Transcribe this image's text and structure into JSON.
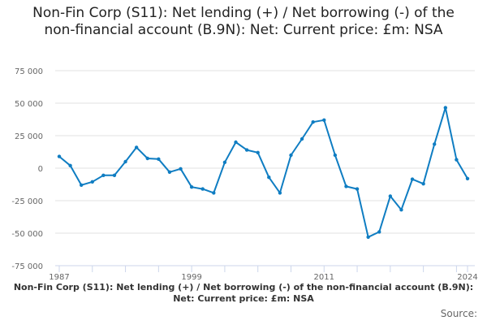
{
  "chart_data": {
    "type": "line",
    "title": "Non-Fin Corp (S11): Net lending (+) / Net borrowing (-) of the non-financial account (B.9N): Net: Current price: £m: NSA",
    "xlabel": "Non-Fin Corp (S11): Net lending (+) / Net borrowing (-) of the non-financial account (B.9N): Net: Current price: £m: NSA",
    "ylabel": "",
    "source_label": "Source:",
    "x": [
      1987,
      1988,
      1989,
      1990,
      1991,
      1992,
      1993,
      1994,
      1995,
      1996,
      1997,
      1998,
      1999,
      2000,
      2001,
      2002,
      2003,
      2004,
      2005,
      2006,
      2007,
      2008,
      2009,
      2010,
      2011,
      2012,
      2013,
      2014,
      2015,
      2016,
      2017,
      2018,
      2019,
      2020,
      2021,
      2022,
      2023,
      2024
    ],
    "values": [
      9000,
      2000,
      -13000,
      -10500,
      -5500,
      -5500,
      5000,
      16000,
      7500,
      7000,
      -3000,
      -500,
      -14500,
      -16000,
      -19000,
      4500,
      20000,
      14000,
      12000,
      -7000,
      -19000,
      10000,
      22500,
      35500,
      37000,
      10000,
      -14000,
      -16000,
      -53000,
      -49000,
      -21500,
      -32000,
      -8500,
      -12000,
      18500,
      46500,
      6500,
      -8000
    ],
    "ylim": [
      -75000,
      75000
    ],
    "yticks": [
      "75 000",
      "50 000",
      "25 000",
      "0",
      "-25 000",
      "-50 000",
      "-75 000"
    ],
    "ytick_values": [
      75000,
      50000,
      25000,
      0,
      -25000,
      -50000,
      -75000
    ],
    "xtick_labels": [
      "1987",
      "1999",
      "2011",
      "2024"
    ],
    "grid": true,
    "legend": "none",
    "line_color": "#0f7dc2"
  }
}
